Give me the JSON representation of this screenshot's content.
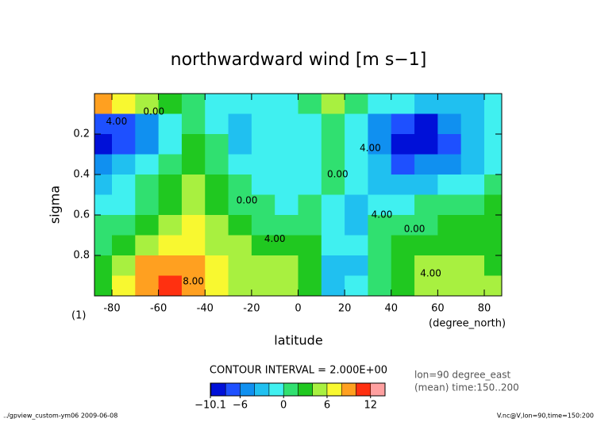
{
  "chart_data": {
    "type": "contour",
    "title": "northwardward wind [m s−1]",
    "x_label": "latitude",
    "y_label": "sigma",
    "x_unit": "(degree_north)",
    "y_unit": "(1)",
    "contour_interval": "CONTOUR INTERVAL = 2.000E+00",
    "info": [
      "lon=90 degree_east",
      "(mean) time:150..200"
    ],
    "footer_left": "../gpview_custom-ym06  2009-06-08",
    "footer_right": "V.nc@V,lon=90,time=150:200",
    "xlim": [
      -87.5,
      87.5
    ],
    "ylim": [
      1,
      0
    ],
    "xticks": [
      -80,
      -60,
      -40,
      -20,
      0,
      20,
      40,
      60,
      80
    ],
    "yticks": [
      0.2,
      0.4,
      0.6,
      0.8
    ],
    "x": [
      -85,
      -75,
      -65,
      -55,
      -45,
      -35,
      -25,
      -15,
      -5,
      5,
      15,
      25,
      35,
      45,
      55,
      65,
      75,
      85
    ],
    "y": [
      0.05,
      0.15,
      0.25,
      0.35,
      0.45,
      0.55,
      0.65,
      0.75,
      0.85,
      0.95
    ],
    "z": [
      [
        8,
        7,
        5,
        2,
        0,
        -1,
        -2,
        -2,
        -1,
        1,
        4,
        1,
        -1,
        -2,
        -3,
        -3,
        -3,
        -2
      ],
      [
        -8,
        -8,
        -5,
        -2,
        1,
        -1,
        -4,
        -2,
        -2,
        -1,
        1,
        -2,
        -6,
        -8,
        -9,
        -6,
        -3,
        -2
      ],
      [
        -9,
        -8,
        -5,
        -1,
        2,
        0,
        -3,
        -2,
        -2,
        -2,
        1,
        -1,
        -6,
        -9,
        -10,
        -7,
        -4,
        -2
      ],
      [
        -6,
        -4,
        -2,
        1,
        3,
        1,
        -1,
        -2,
        -2,
        -2,
        1,
        -1,
        -4,
        -7,
        -6,
        -5,
        -3,
        -1
      ],
      [
        -3,
        -2,
        0,
        2,
        4,
        2,
        0,
        -1,
        -1,
        -1,
        0,
        -2,
        -3,
        -4,
        -4,
        -2,
        -1,
        1
      ],
      [
        -2,
        -1,
        1,
        3,
        5,
        3,
        1,
        0,
        -1,
        0,
        -1,
        -3,
        -2,
        -1,
        0,
        1,
        1,
        2
      ],
      [
        0,
        1,
        3,
        5,
        6,
        5,
        3,
        1,
        1,
        1,
        -2,
        -3,
        0,
        1,
        1,
        2,
        2,
        2
      ],
      [
        1,
        3,
        5,
        6,
        6,
        5,
        4,
        3,
        3,
        3,
        -2,
        -2,
        1,
        2,
        3,
        3,
        3,
        3
      ],
      [
        2,
        5,
        8,
        9,
        8,
        6,
        5,
        5,
        5,
        3,
        -3,
        -3,
        1,
        3,
        4,
        4,
        4,
        3
      ],
      [
        3,
        6,
        9,
        10,
        8,
        6,
        5,
        5,
        5,
        2,
        -3,
        -2,
        1,
        3,
        5,
        5,
        5,
        4
      ]
    ],
    "levels": [
      -10.1,
      -10,
      -8,
      -6,
      -4,
      -2,
      0,
      2,
      4,
      6,
      8,
      10,
      12,
      14
    ],
    "colors": [
      "#000090",
      "#0010d8",
      "#1e50ff",
      "#1090f0",
      "#20c0f0",
      "#40f0f0",
      "#30e070",
      "#20c820",
      "#a8f040",
      "#f8f830",
      "#ffa020",
      "#ff3010",
      "#ffa0a0"
    ],
    "colorbar_ticks": [
      {
        "value": -10.1,
        "label": "−10.1"
      },
      {
        "value": -6,
        "label": "−6"
      },
      0,
      6,
      12
    ],
    "annotations": [
      "0.00",
      "4.00",
      "0.00",
      "4.00",
      "8.00",
      "0.00",
      "4.00",
      "4.00",
      "0.00",
      "4.00"
    ]
  }
}
